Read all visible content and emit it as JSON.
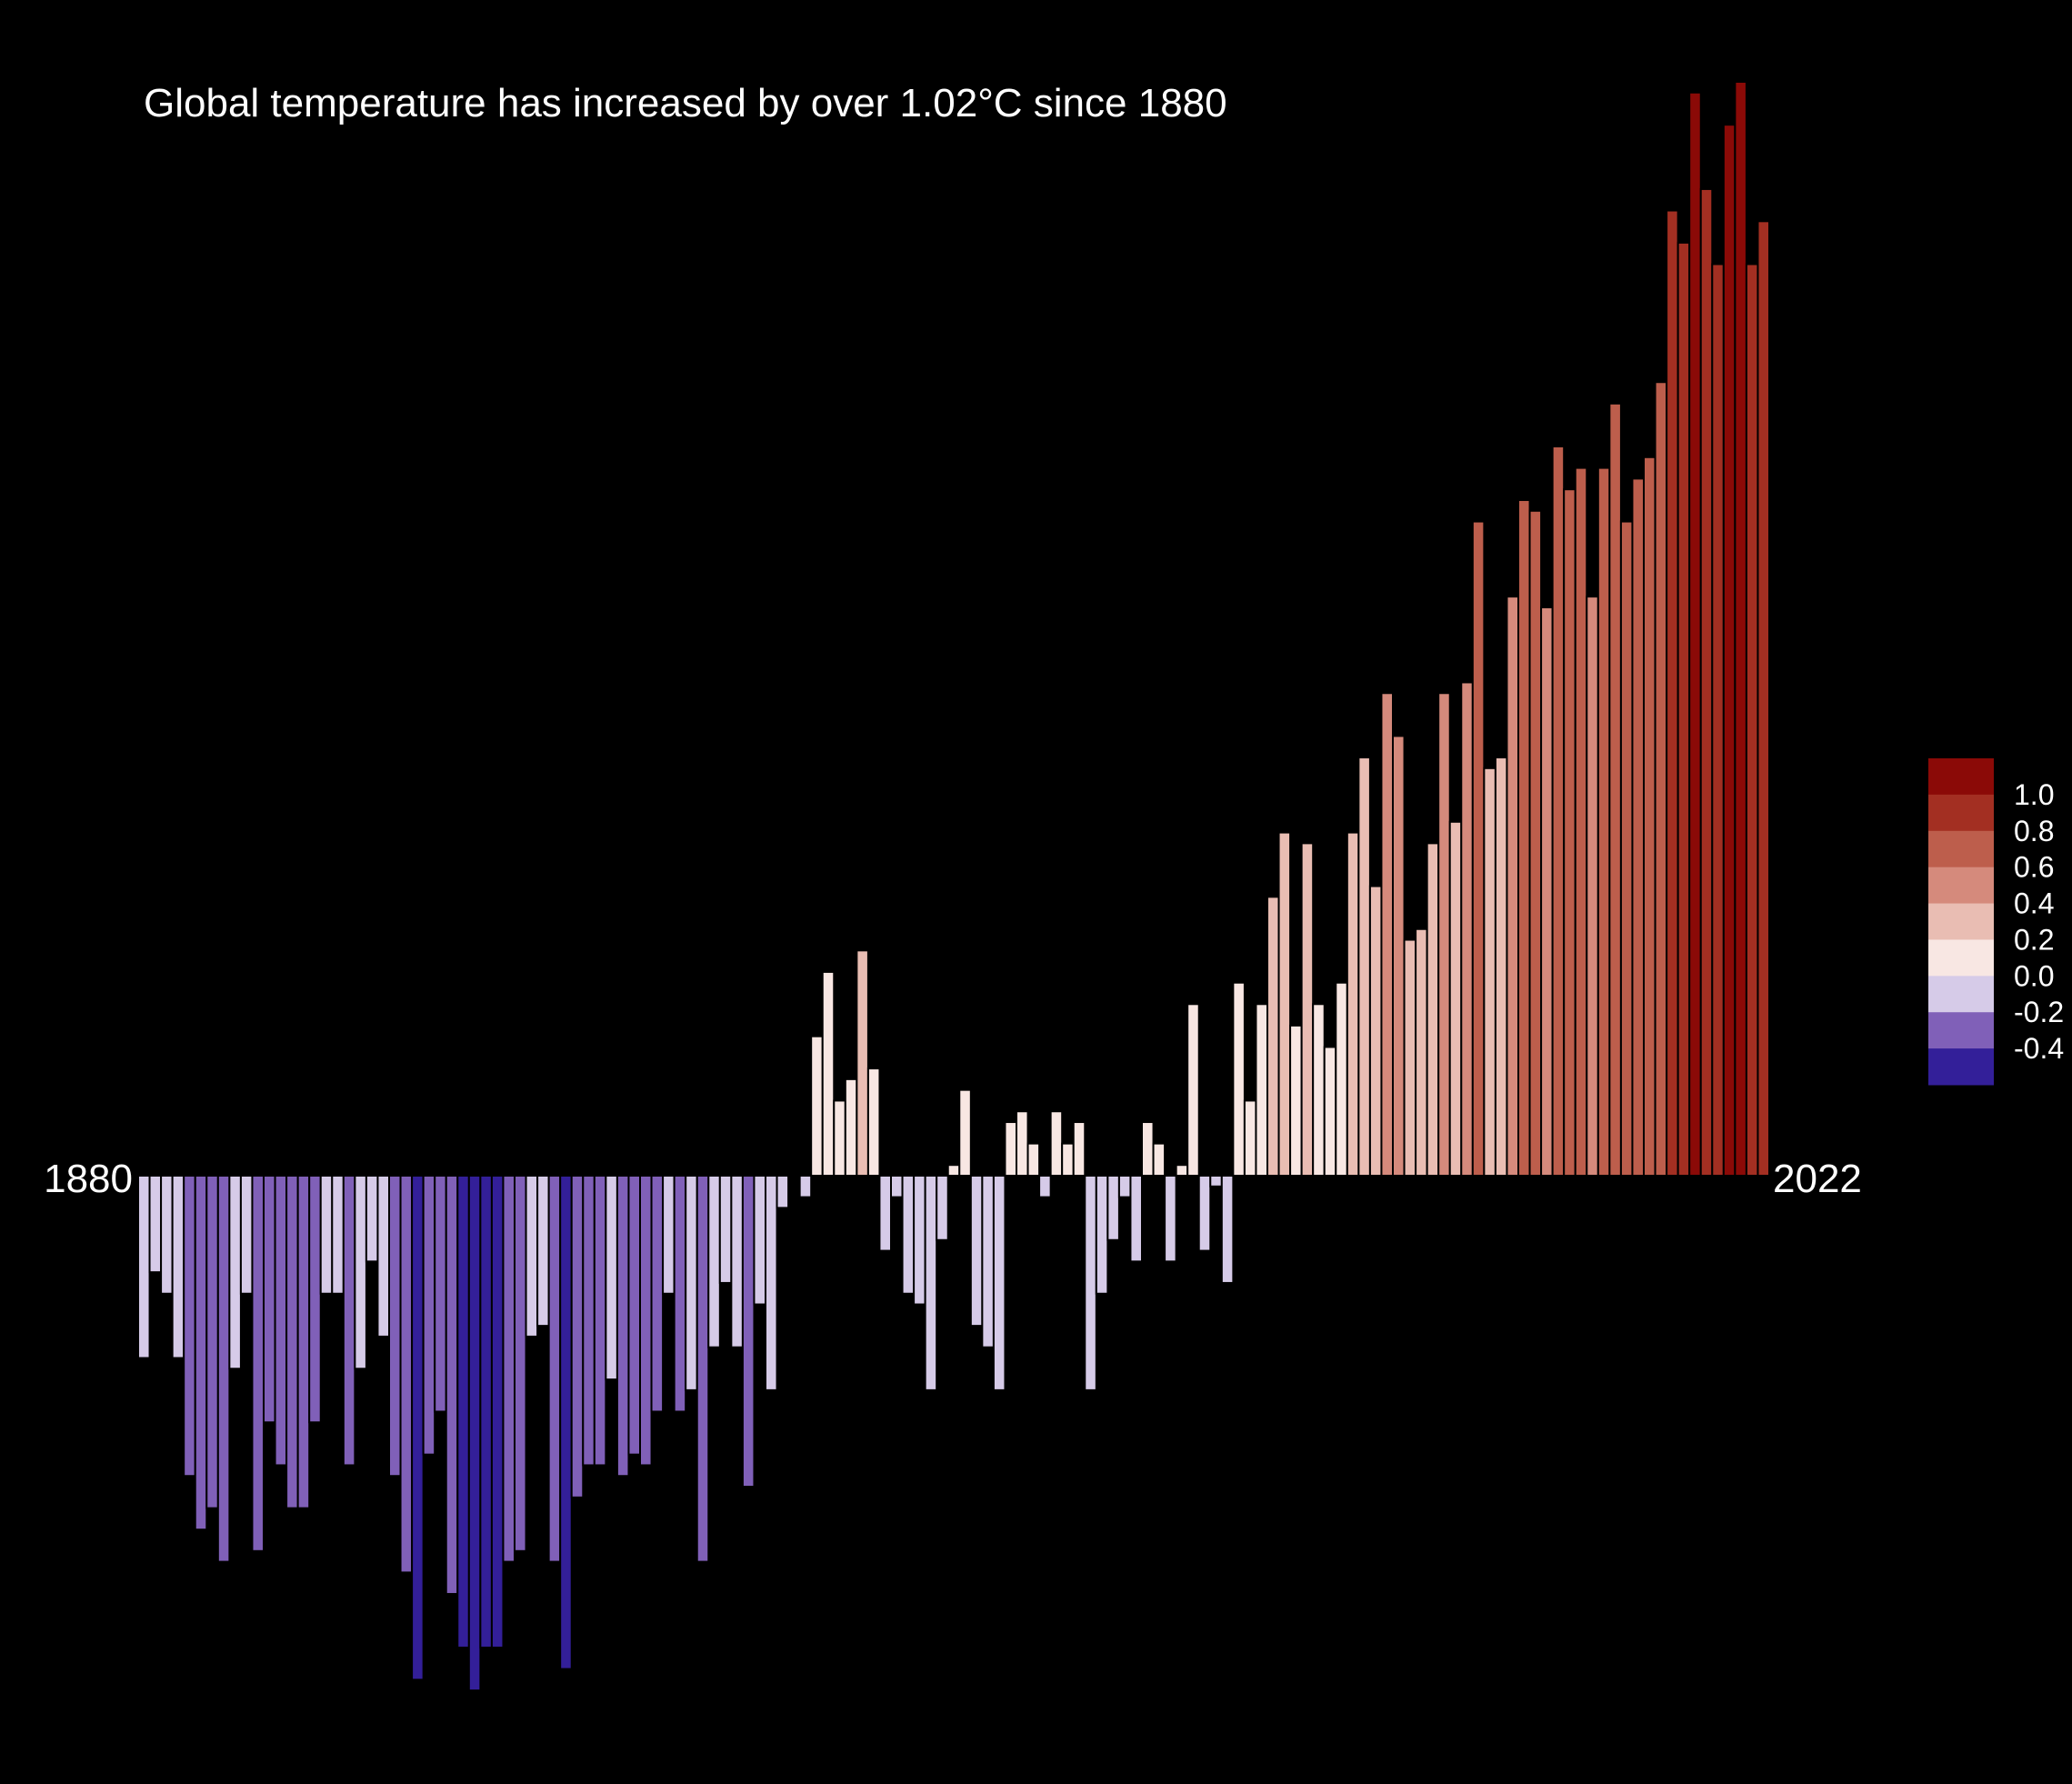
{
  "chart_data": {
    "type": "bar",
    "title": "Global temperature has increased by over 1.02°C since 1880",
    "xlabel": "",
    "ylabel": "",
    "x_start_label": "1880",
    "x_end_label": "2022",
    "ylim": [
      -0.49,
      1.02
    ],
    "years_start": 1880,
    "years_end": 2022,
    "values": [
      -0.17,
      -0.09,
      -0.11,
      -0.17,
      -0.28,
      -0.33,
      -0.31,
      -0.36,
      -0.18,
      -0.11,
      -0.35,
      -0.23,
      -0.27,
      -0.31,
      -0.31,
      -0.23,
      -0.11,
      -0.11,
      -0.27,
      -0.18,
      -0.08,
      -0.15,
      -0.28,
      -0.37,
      -0.47,
      -0.26,
      -0.22,
      -0.39,
      -0.44,
      -0.48,
      -0.44,
      -0.44,
      -0.36,
      -0.35,
      -0.15,
      -0.14,
      -0.36,
      -0.46,
      -0.3,
      -0.27,
      -0.27,
      -0.19,
      -0.28,
      -0.26,
      -0.27,
      -0.22,
      -0.11,
      -0.22,
      -0.2,
      -0.36,
      -0.16,
      -0.1,
      -0.16,
      -0.29,
      -0.12,
      -0.2,
      -0.03,
      0.0,
      -0.02,
      0.13,
      0.19,
      0.07,
      0.09,
      0.21,
      0.1,
      -0.07,
      -0.02,
      -0.11,
      -0.12,
      -0.2,
      -0.06,
      0.01,
      0.08,
      -0.14,
      -0.16,
      -0.2,
      0.05,
      0.06,
      0.03,
      -0.02,
      0.06,
      0.03,
      0.05,
      -0.2,
      -0.11,
      -0.06,
      -0.02,
      -0.08,
      0.05,
      0.03,
      -0.08,
      0.01,
      0.16,
      -0.07,
      -0.01,
      -0.1,
      0.18,
      0.07,
      0.16,
      0.26,
      0.32,
      0.14,
      0.31,
      0.16,
      0.12,
      0.18,
      0.32,
      0.39,
      0.27,
      0.45,
      0.41,
      0.22,
      0.23,
      0.31,
      0.45,
      0.33,
      0.46,
      0.61,
      0.38,
      0.39,
      0.54,
      0.63,
      0.62,
      0.53,
      0.68,
      0.64,
      0.66,
      0.54,
      0.66,
      0.72,
      0.61,
      0.65,
      0.67,
      0.74,
      0.9,
      0.87,
      1.01,
      0.92,
      0.85,
      0.98,
      1.02,
      0.85,
      0.89
    ],
    "colorbar": {
      "labels": [
        "1.0",
        "0.8",
        "0.6",
        "0.4",
        "0.2",
        "0.0",
        "-0.2",
        "-0.4"
      ],
      "colors": [
        "#8b0a07",
        "#a32f22",
        "#bd5e4c",
        "#d58a7c",
        "#e9bdb3",
        "#f8e7e3",
        "#d6cbe8",
        "#8060b8",
        "#331f99"
      ]
    },
    "bar_stroke": "#000000",
    "background": "#000000"
  }
}
